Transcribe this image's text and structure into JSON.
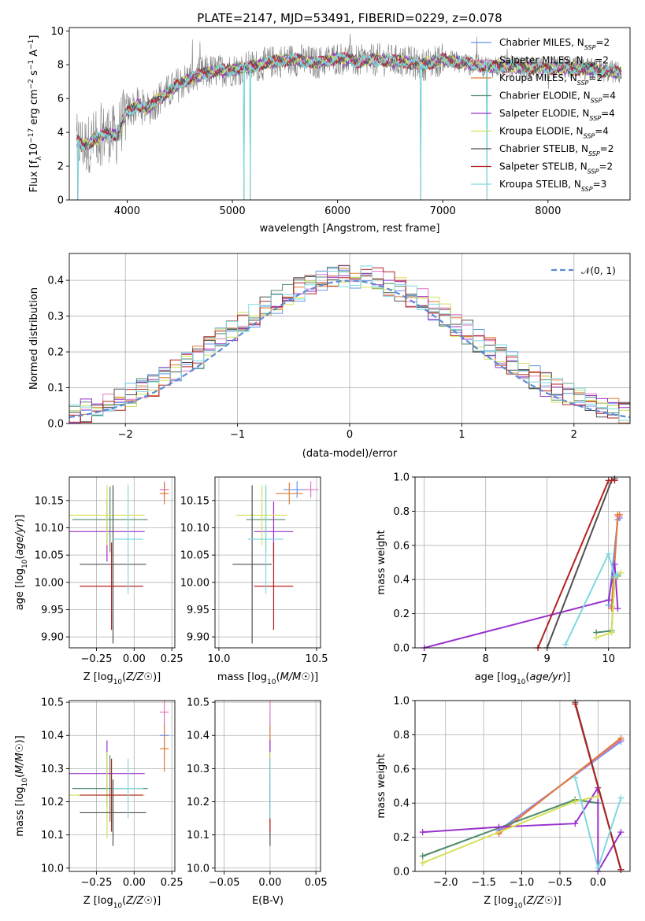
{
  "figure": {
    "title": "PLATE=2147, MJD=53491, FIBERID=0229, z=0.078"
  },
  "series_styles": [
    {
      "name": "Chabrier MILES",
      "nssp": "2",
      "color": "#6495ed"
    },
    {
      "name": "Salpeter MILES",
      "nssp": "2",
      "color": "#e377c2"
    },
    {
      "name": "Kroupa MILES",
      "nssp": "2",
      "color": "#e07b39"
    },
    {
      "name": "Chabrier ELODIE",
      "nssp": "4",
      "color": "#4f8a6b"
    },
    {
      "name": "Salpeter ELODIE",
      "nssp": "4",
      "color": "#9932cc"
    },
    {
      "name": "Kroupa ELODIE",
      "nssp": "4",
      "color": "#d4e157"
    },
    {
      "name": "Chabrier STELIB",
      "nssp": "2",
      "color": "#505050"
    },
    {
      "name": "Salpeter STELIB",
      "nssp": "2",
      "color": "#b22222"
    },
    {
      "name": "Kroupa STELIB",
      "nssp": "3",
      "color": "#7fd8e0"
    }
  ],
  "chart_data": [
    {
      "id": "spectrum",
      "type": "line",
      "xlabel": "wavelength [Angstrom, rest frame]",
      "ylabel_parts": [
        "Flux [f",
        "λ",
        "10",
        "−17",
        " erg cm",
        "−2",
        " s",
        "−1",
        " A",
        "−1",
        "]"
      ],
      "xlim": [
        3450,
        8780
      ],
      "ylim": [
        0,
        10.2
      ],
      "xticks": [
        4000,
        5000,
        6000,
        7000,
        8000
      ],
      "yticks": [
        0,
        2,
        4,
        6,
        8,
        10
      ],
      "data_color": "#808080",
      "data_anchors": {
        "x": [
          3520,
          3600,
          3700,
          3800,
          3900,
          3950,
          4000,
          4100,
          4200,
          4300,
          4400,
          4500,
          4600,
          4800,
          5000,
          5200,
          5400,
          5600,
          5800,
          6000,
          6200,
          6400,
          6600,
          6800,
          7000,
          7200,
          7400,
          7600,
          7800,
          8000,
          8200,
          8400,
          8600,
          8700
        ],
        "y": [
          3.5,
          3.2,
          3.6,
          4.0,
          3.8,
          4.6,
          5.2,
          5.6,
          5.4,
          6.0,
          6.4,
          6.9,
          7.2,
          7.6,
          7.7,
          7.9,
          8.2,
          8.3,
          8.1,
          8.4,
          8.2,
          8.3,
          8.2,
          8.0,
          8.3,
          8.1,
          7.9,
          7.9,
          7.8,
          7.8,
          7.8,
          7.7,
          7.6,
          7.5
        ]
      },
      "dropout_wavelengths": [
        3530,
        5110,
        5170,
        6790,
        7420
      ]
    },
    {
      "id": "residual_hist",
      "type": "histogram",
      "xlabel": "(data-model)/error",
      "ylabel": "Normed distribution",
      "xlim": [
        -2.5,
        2.5
      ],
      "ylim": [
        0,
        0.475
      ],
      "xticks": [
        -2,
        -1,
        0,
        1,
        2
      ],
      "yticks": [
        0.0,
        0.1,
        0.2,
        0.3,
        0.4
      ],
      "bin_width": 0.1,
      "reference_curve": {
        "label": "𝒩(0, 1)",
        "color": "#5b8bd5",
        "mean": 0,
        "sigma": 1
      }
    },
    {
      "id": "age_vs_Z",
      "type": "errorbar",
      "xlabel": "Z [log10(Z/Z☉)]",
      "ylabel": "age  [log10(age/yr)]",
      "xlim": [
        -0.43,
        0.27
      ],
      "ylim": [
        9.88,
        10.193
      ],
      "xticks": [
        -0.25,
        0.0,
        0.25
      ],
      "yticks": [
        9.9,
        9.95,
        10.0,
        10.05,
        10.1,
        10.15
      ],
      "points": [
        {
          "x": 0.2,
          "xerr": 0.03,
          "y": 10.17,
          "yerr": 0.015
        },
        {
          "x": 0.2,
          "xerr": 0.03,
          "y": 10.17,
          "yerr": 0.015
        },
        {
          "x": 0.2,
          "xerr": 0.03,
          "y": 10.163,
          "yerr": 0.02
        },
        {
          "x": -0.16,
          "xerr": 0.25,
          "y": 10.115,
          "yerr": 0.06
        },
        {
          "x": -0.18,
          "xerr": 0.25,
          "y": 10.093,
          "yerr": 0.055
        },
        {
          "x": -0.18,
          "xerr": 0.25,
          "y": 10.123,
          "yerr": 0.055
        },
        {
          "x": -0.14,
          "xerr": 0.22,
          "y": 10.033,
          "yerr": 0.145
        },
        {
          "x": -0.15,
          "xerr": 0.21,
          "y": 9.993,
          "yerr": 0.08
        },
        {
          "x": -0.04,
          "xerr": 0.1,
          "y": 10.079,
          "yerr": 0.1
        }
      ]
    },
    {
      "id": "age_vs_mass",
      "type": "errorbar",
      "xlabel": "mass [log10(M/M☉)]",
      "ylabel": "",
      "xlim": [
        9.98,
        10.52
      ],
      "ylim": [
        9.88,
        10.193
      ],
      "xticks": [
        10.0,
        10.5
      ],
      "yticks": [
        9.9,
        9.95,
        10.0,
        10.05,
        10.1,
        10.15
      ],
      "points": [
        {
          "x": 10.4,
          "xerr": 0.07,
          "y": 10.17,
          "yerr": 0.015
        },
        {
          "x": 10.47,
          "xerr": 0.04,
          "y": 10.17,
          "yerr": 0.015
        },
        {
          "x": 10.36,
          "xerr": 0.07,
          "y": 10.163,
          "yerr": 0.02
        },
        {
          "x": 10.24,
          "xerr": 0.1,
          "y": 10.115,
          "yerr": 0.06
        },
        {
          "x": 10.28,
          "xerr": 0.1,
          "y": 10.093,
          "yerr": 0.055
        },
        {
          "x": 10.22,
          "xerr": 0.13,
          "y": 10.123,
          "yerr": 0.055
        },
        {
          "x": 10.17,
          "xerr": 0.1,
          "y": 10.033,
          "yerr": 0.145
        },
        {
          "x": 10.28,
          "xerr": 0.1,
          "y": 9.993,
          "yerr": 0.08
        },
        {
          "x": 10.24,
          "xerr": 0.09,
          "y": 10.079,
          "yerr": 0.1
        }
      ]
    },
    {
      "id": "weight_vs_age",
      "type": "line",
      "xlabel": "age  [log10(age/yr)]",
      "ylabel": "mass weight",
      "xlim": [
        6.85,
        10.35
      ],
      "ylim": [
        0,
        1.0
      ],
      "xticks": [
        7,
        8,
        9,
        10
      ],
      "yticks": [
        0.0,
        0.2,
        0.4,
        0.6,
        0.8,
        1.0
      ],
      "series": [
        {
          "x": [
            10.0,
            10.15,
            10.18
          ],
          "y": [
            0.25,
            0.75,
            0.76
          ]
        },
        {
          "x": [
            10.05,
            10.15,
            10.18
          ],
          "y": [
            0.24,
            0.77,
            0.77
          ]
        },
        {
          "x": [
            10.05,
            10.15,
            10.18
          ],
          "y": [
            0.23,
            0.78,
            0.78
          ]
        },
        {
          "x": [
            9.8,
            10.05,
            10.1,
            10.15
          ],
          "y": [
            0.09,
            0.1,
            0.41,
            0.42
          ]
        },
        {
          "x": [
            7.0,
            10.0,
            10.1,
            10.15
          ],
          "y": [
            0.0,
            0.28,
            0.49,
            0.23
          ]
        },
        {
          "x": [
            9.8,
            10.05,
            10.1,
            10.2
          ],
          "y": [
            0.06,
            0.09,
            0.41,
            0.44
          ]
        },
        {
          "x": [
            9.0,
            10.05,
            10.1
          ],
          "y": [
            0.0,
            0.98,
            0.99
          ]
        },
        {
          "x": [
            8.85,
            10.0,
            10.1
          ],
          "y": [
            0.0,
            0.98,
            0.98
          ]
        },
        {
          "x": [
            9.3,
            10.0,
            10.1,
            10.15
          ],
          "y": [
            0.02,
            0.55,
            0.42,
            0.43
          ]
        }
      ]
    },
    {
      "id": "mass_vs_Z",
      "type": "errorbar",
      "xlabel": "Z [log10(Z/Z☉)]",
      "ylabel": "mass [log10(M/M☉)]",
      "xlim": [
        -0.43,
        0.27
      ],
      "ylim": [
        9.99,
        10.505
      ],
      "xticks": [
        -0.25,
        0.0,
        0.25
      ],
      "yticks": [
        10.0,
        10.1,
        10.2,
        10.3,
        10.4,
        10.5
      ],
      "points": [
        {
          "x": 0.2,
          "xerr": 0.03,
          "y": 10.4,
          "yerr": 0.07
        },
        {
          "x": 0.2,
          "xerr": 0.03,
          "y": 10.47,
          "yerr": 0.04
        },
        {
          "x": 0.2,
          "xerr": 0.03,
          "y": 10.36,
          "yerr": 0.07
        },
        {
          "x": -0.16,
          "xerr": 0.25,
          "y": 10.24,
          "yerr": 0.1
        },
        {
          "x": -0.18,
          "xerr": 0.25,
          "y": 10.285,
          "yerr": 0.1
        },
        {
          "x": -0.18,
          "xerr": 0.25,
          "y": 10.22,
          "yerr": 0.13
        },
        {
          "x": -0.14,
          "xerr": 0.22,
          "y": 10.167,
          "yerr": 0.1
        },
        {
          "x": -0.15,
          "xerr": 0.21,
          "y": 10.22,
          "yerr": 0.11
        },
        {
          "x": -0.04,
          "xerr": 0.1,
          "y": 10.24,
          "yerr": 0.09
        }
      ]
    },
    {
      "id": "mass_vs_EBV",
      "type": "errorbar",
      "xlabel": "E(B-V)",
      "ylabel": "",
      "xlim": [
        -0.06,
        0.055
      ],
      "ylim": [
        9.99,
        10.505
      ],
      "xticks": [
        -0.05,
        0.0,
        0.05
      ],
      "yticks": [
        10.0,
        10.1,
        10.2,
        10.3,
        10.4,
        10.5
      ],
      "points": [
        {
          "x": 0.0,
          "xerr": 0.0,
          "y": 10.4,
          "yerr": 0.07
        },
        {
          "x": 0.0,
          "xerr": 0.0,
          "y": 10.47,
          "yerr": 0.04
        },
        {
          "x": 0.0,
          "xerr": 0.0,
          "y": 10.36,
          "yerr": 0.07
        },
        {
          "x": 0.0,
          "xerr": 0.0,
          "y": 10.24,
          "yerr": 0.1
        },
        {
          "x": 0.0,
          "xerr": 0.0,
          "y": 10.285,
          "yerr": 0.1
        },
        {
          "x": 0.0,
          "xerr": 0.0,
          "y": 10.22,
          "yerr": 0.13
        },
        {
          "x": 0.0,
          "xerr": 0.0,
          "y": 10.167,
          "yerr": 0.1
        },
        {
          "x": 0.0,
          "xerr": 0.0,
          "y": 10.22,
          "yerr": 0.11
        },
        {
          "x": 0.0,
          "xerr": 0.0,
          "y": 10.24,
          "yerr": 0.09
        }
      ]
    },
    {
      "id": "weight_vs_Z",
      "type": "line",
      "xlabel": "Z [log10(Z/Z☉)]",
      "ylabel": "mass weight",
      "xlim": [
        -2.4,
        0.42
      ],
      "ylim": [
        0,
        1.0
      ],
      "xticks": [
        -2.0,
        -1.5,
        -1.0,
        -0.5,
        0.0
      ],
      "yticks": [
        0.0,
        0.2,
        0.4,
        0.6,
        0.8,
        1.0
      ],
      "series": [
        {
          "x": [
            -1.3,
            0.3
          ],
          "y": [
            0.24,
            0.76
          ]
        },
        {
          "x": [
            -1.3,
            0.3
          ],
          "y": [
            0.23,
            0.77
          ]
        },
        {
          "x": [
            -1.3,
            0.3
          ],
          "y": [
            0.22,
            0.78
          ]
        },
        {
          "x": [
            -2.3,
            -0.3,
            0.0
          ],
          "y": [
            0.09,
            0.42,
            0.4
          ]
        },
        {
          "x": [
            -2.3,
            -1.3,
            -0.3,
            0.0,
            0.0,
            0.3
          ],
          "y": [
            0.23,
            0.26,
            0.28,
            0.49,
            0.0,
            0.23
          ]
        },
        {
          "x": [
            -2.3,
            -0.3,
            0.0
          ],
          "y": [
            0.05,
            0.41,
            0.44
          ]
        },
        {
          "x": [
            -0.3,
            0.3
          ],
          "y": [
            0.99,
            0.01
          ]
        },
        {
          "x": [
            -0.3,
            0.3
          ],
          "y": [
            0.98,
            0.01
          ]
        },
        {
          "x": [
            -0.3,
            0.0,
            0.3
          ],
          "y": [
            0.55,
            0.02,
            0.43
          ]
        }
      ]
    }
  ]
}
